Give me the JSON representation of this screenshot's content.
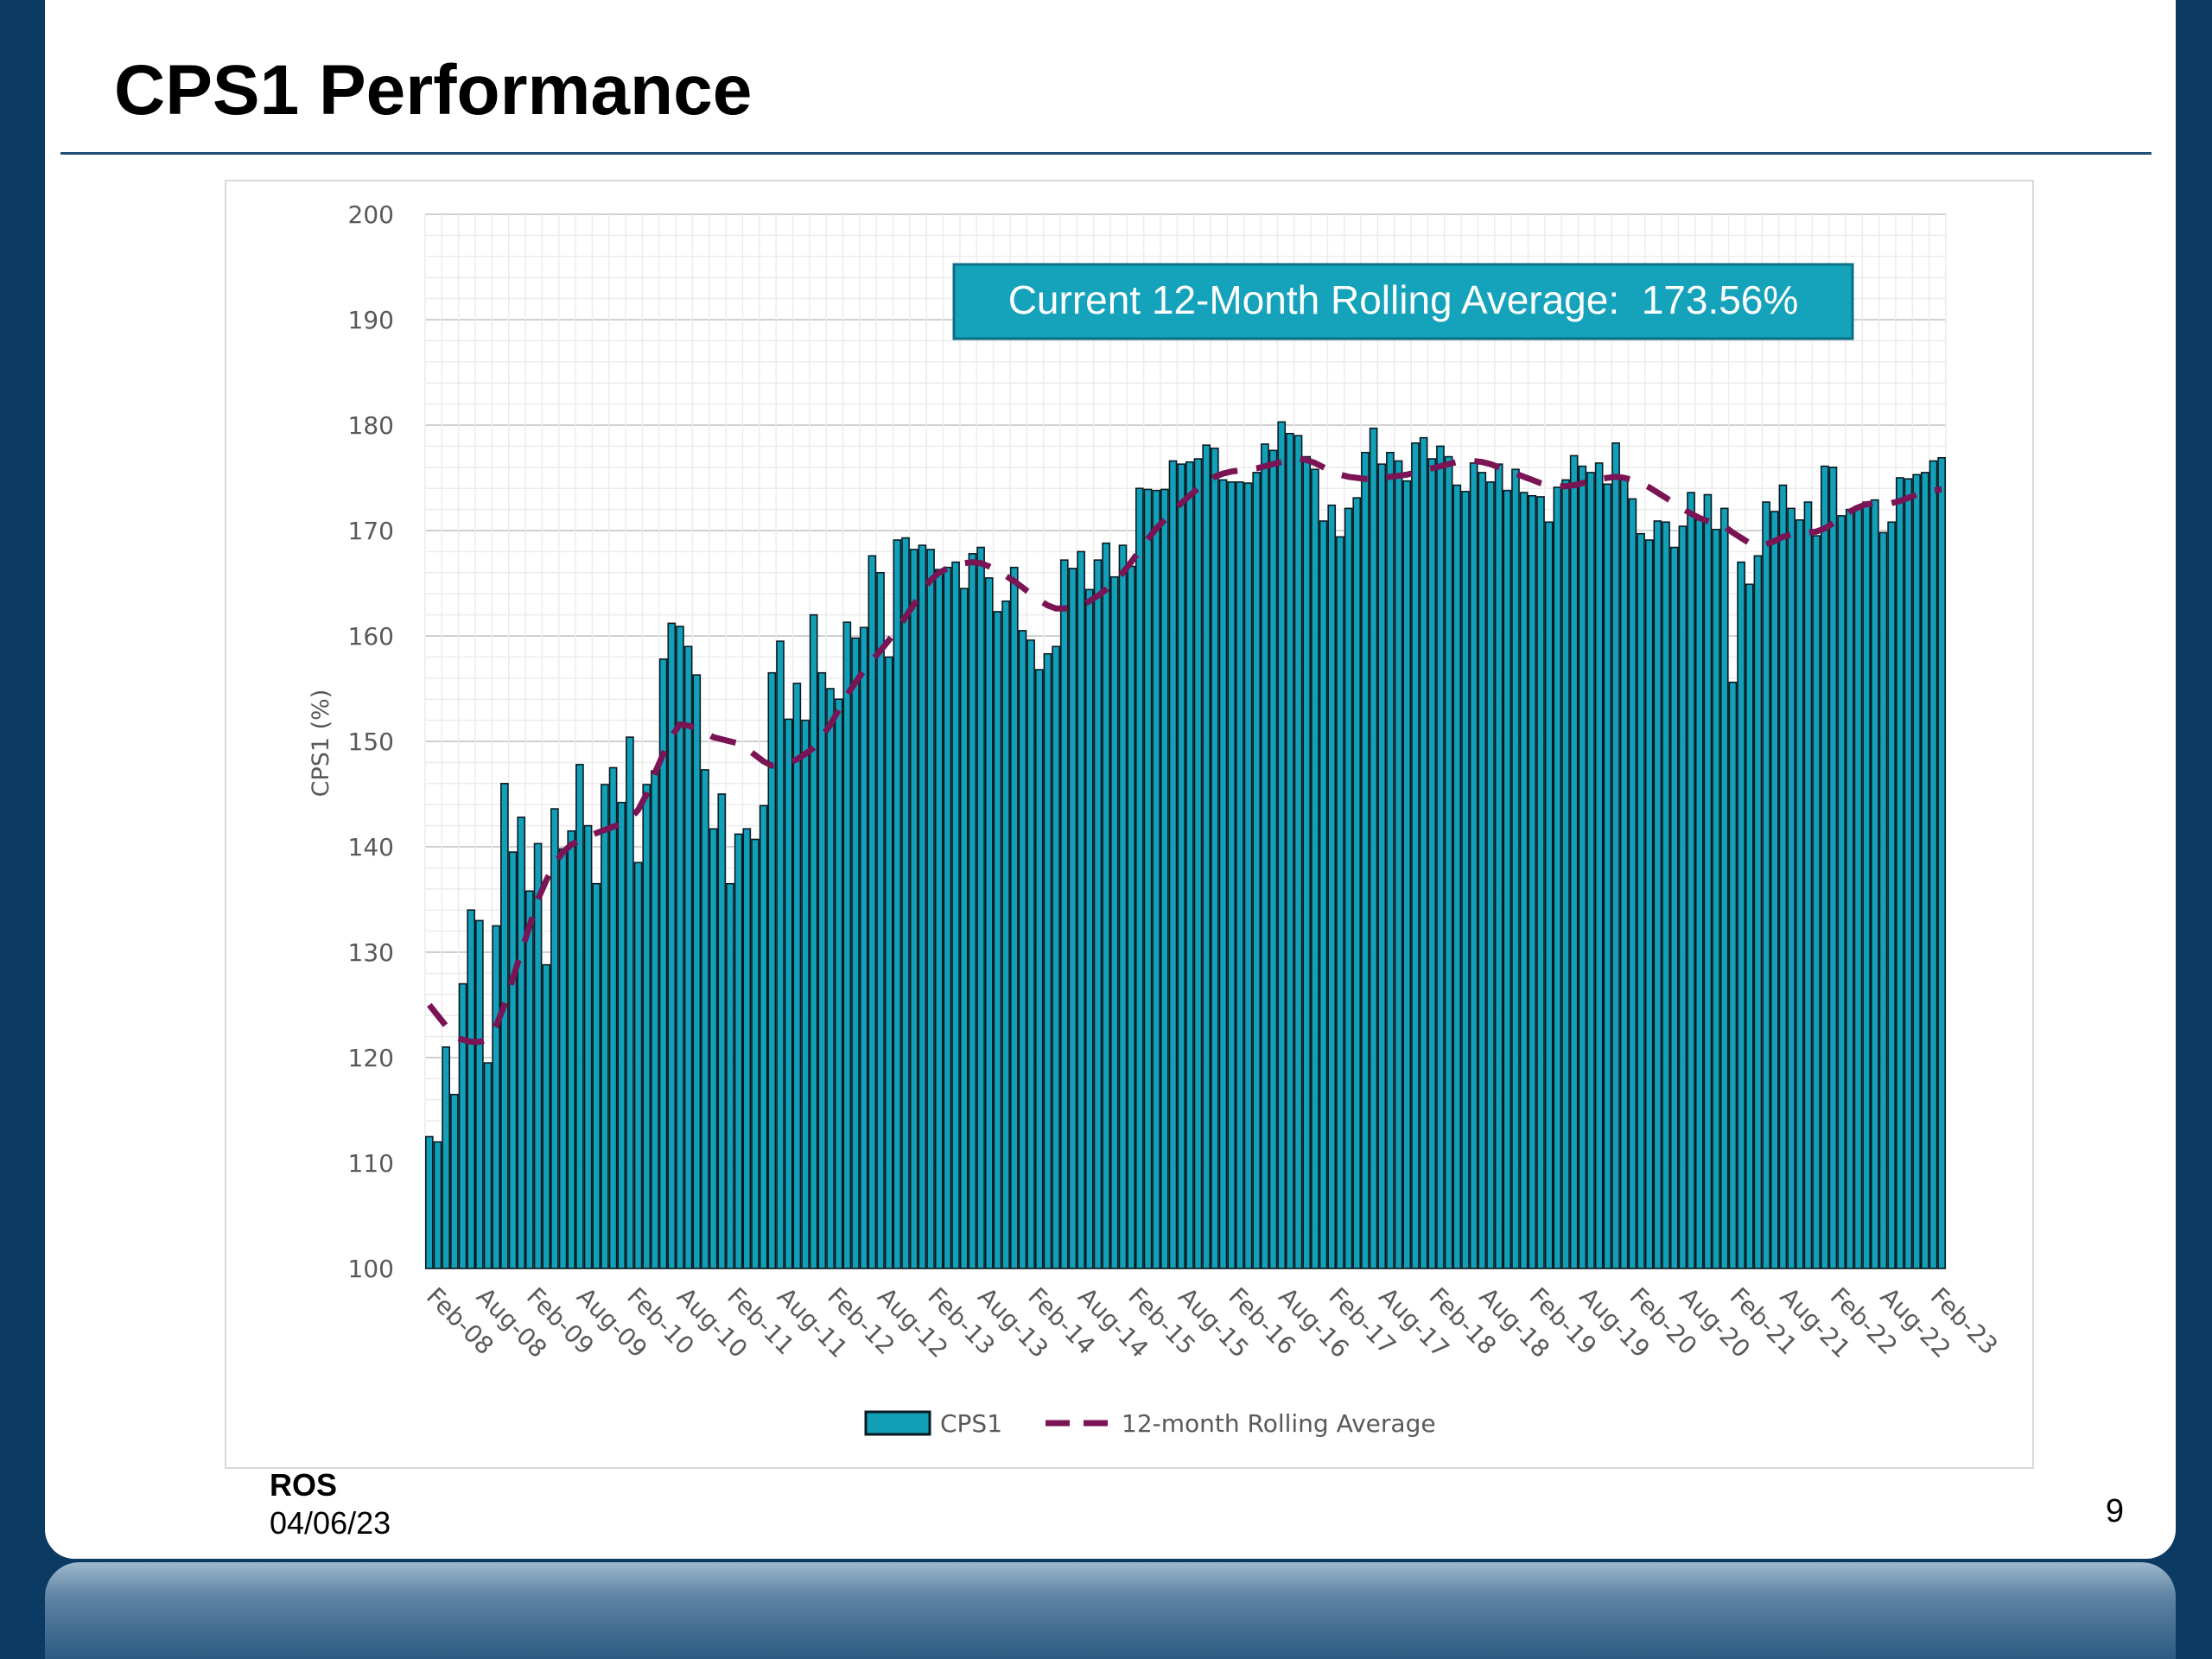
{
  "slide": {
    "title": "CPS1 Performance",
    "footer_org": "ROS",
    "footer_date": "04/06/23",
    "page_number": "9"
  },
  "colors": {
    "background": "#0b3a63",
    "bar_fill": "#11a0b8",
    "bar_stroke": "#0a1a22",
    "rolling_line": "#7a1454",
    "callout_fill": "#14a3bb",
    "callout_border": "#0d6f86",
    "rule": "#1f4e79"
  },
  "chart_data": {
    "type": "bar",
    "title": "",
    "xlabel": "",
    "ylabel": "CPS1 (%)",
    "ylim": [
      100,
      200
    ],
    "yticks": [
      100,
      110,
      120,
      130,
      140,
      150,
      160,
      170,
      180,
      190,
      200
    ],
    "grid": true,
    "legend_position": "bottom",
    "x_tick_labels": [
      "Feb-08",
      "Aug-08",
      "Feb-09",
      "Aug-09",
      "Feb-10",
      "Aug-10",
      "Feb-11",
      "Aug-11",
      "Feb-12",
      "Aug-12",
      "Feb-13",
      "Aug-13",
      "Feb-14",
      "Aug-14",
      "Feb-15",
      "Aug-15",
      "Feb-16",
      "Aug-16",
      "Feb-17",
      "Aug-17",
      "Feb-18",
      "Aug-18",
      "Feb-19",
      "Aug-19",
      "Feb-20",
      "Aug-20",
      "Feb-21",
      "Aug-21",
      "Feb-22",
      "Aug-22",
      "Feb-23"
    ],
    "annotation": "Current 12-Month Rolling Average:  173.56%",
    "series": [
      {
        "name": "CPS1",
        "type": "bar",
        "start": "Feb-08",
        "values": [
          112.5,
          112.0,
          121.0,
          116.5,
          127.0,
          134.0,
          133.0,
          119.5,
          132.5,
          146.0,
          139.5,
          142.8,
          135.8,
          140.3,
          128.8,
          143.6,
          139.8,
          141.5,
          147.8,
          142.0,
          136.5,
          145.9,
          147.5,
          144.2,
          150.4,
          138.5,
          145.9,
          147.2,
          157.8,
          161.2,
          160.9,
          159.0,
          156.3,
          147.3,
          141.7,
          145.0,
          136.5,
          141.2,
          141.7,
          140.7,
          143.9,
          156.5,
          159.5,
          152.1,
          155.5,
          152.0,
          162.0,
          156.5,
          155.0,
          154.0,
          161.3,
          159.8,
          160.8,
          167.6,
          166.0,
          158.0,
          169.1,
          169.3,
          168.2,
          168.6,
          168.2,
          166.3,
          166.5,
          167.0,
          164.5,
          167.8,
          168.4,
          165.5,
          162.3,
          163.3,
          166.5,
          160.5,
          159.6,
          156.8,
          158.3,
          159.0,
          167.2,
          166.4,
          168.0,
          164.4,
          167.2,
          168.8,
          165.6,
          168.6,
          166.6,
          174.0,
          173.9,
          173.8,
          173.9,
          176.6,
          176.3,
          176.5,
          176.8,
          178.1,
          177.8,
          174.8,
          174.6,
          174.6,
          174.5,
          175.5,
          178.2,
          177.6,
          180.3,
          179.2,
          179.0,
          177.0,
          175.8,
          170.9,
          172.4,
          169.4,
          172.1,
          173.1,
          177.4,
          179.7,
          176.3,
          177.4,
          176.6,
          174.7,
          178.3,
          178.8,
          176.8,
          178.0,
          177.0,
          174.3,
          173.7,
          176.4,
          175.5,
          174.6,
          176.3,
          173.8,
          175.8,
          173.6,
          173.3,
          173.2,
          170.8,
          174.1,
          174.8,
          177.1,
          176.1,
          175.5,
          176.4,
          174.4,
          178.3,
          175.1,
          173.0,
          169.7,
          169.1,
          170.9,
          170.8,
          168.4,
          170.4,
          173.6,
          171.0,
          173.4,
          170.1,
          172.1,
          155.6,
          167.0,
          164.9,
          167.6,
          172.7,
          171.8,
          174.3,
          172.1,
          171.0,
          172.7,
          169.5,
          176.1,
          176.0,
          171.4,
          172.0,
          172.3,
          172.7,
          172.9,
          169.8,
          170.8,
          175.0,
          174.9,
          175.3,
          175.5,
          176.6,
          176.9
        ]
      },
      {
        "name": "12-month Rolling Average",
        "type": "line",
        "dash": true,
        "values": [
          125.0,
          124.0,
          123.0,
          122.0,
          121.7,
          121.5,
          121.5,
          121.7,
          123.0,
          125.0,
          127.5,
          130.0,
          132.5,
          135.0,
          136.8,
          138.4,
          139.5,
          140.2,
          140.6,
          141.0,
          141.3,
          141.6,
          141.9,
          142.2,
          142.6,
          143.5,
          145.0,
          147.0,
          148.8,
          150.5,
          151.6,
          151.5,
          151.2,
          150.8,
          150.4,
          150.2,
          150.0,
          149.8,
          149.3,
          148.7,
          148.1,
          147.7,
          147.7,
          147.9,
          148.3,
          148.8,
          149.4,
          150.4,
          151.6,
          153.0,
          154.4,
          155.6,
          156.7,
          157.7,
          158.6,
          159.6,
          160.6,
          161.8,
          163.0,
          164.2,
          165.3,
          166.0,
          166.4,
          166.7,
          166.9,
          167.0,
          166.9,
          166.6,
          166.2,
          165.7,
          165.2,
          164.6,
          164.0,
          163.4,
          162.9,
          162.6,
          162.6,
          162.7,
          162.9,
          163.3,
          163.8,
          164.4,
          165.1,
          166.0,
          167.0,
          168.1,
          169.2,
          170.2,
          171.0,
          171.8,
          172.6,
          173.3,
          174.0,
          174.6,
          175.1,
          175.4,
          175.6,
          175.7,
          175.8,
          175.9,
          176.1,
          176.3,
          176.5,
          176.7,
          176.8,
          176.7,
          176.4,
          176.0,
          175.6,
          175.3,
          175.1,
          175.0,
          174.9,
          174.9,
          175.0,
          175.1,
          175.2,
          175.3,
          175.5,
          175.7,
          175.9,
          176.1,
          176.3,
          176.5,
          176.6,
          176.6,
          176.5,
          176.3,
          176.0,
          175.7,
          175.4,
          175.1,
          174.8,
          174.5,
          174.3,
          174.2,
          174.2,
          174.3,
          174.5,
          174.7,
          174.9,
          175.0,
          175.1,
          175.0,
          174.8,
          174.5,
          174.1,
          173.6,
          173.1,
          172.6,
          172.1,
          171.6,
          171.2,
          170.9,
          170.6,
          170.4,
          169.8,
          169.3,
          168.8,
          168.6,
          168.7,
          169.0,
          169.4,
          169.6,
          169.7,
          169.8,
          169.9,
          170.2,
          170.7,
          171.3,
          171.8,
          172.2,
          172.5,
          172.6,
          172.6,
          172.6,
          172.8,
          173.1,
          173.4,
          173.6,
          173.8,
          173.9
        ]
      }
    ]
  }
}
